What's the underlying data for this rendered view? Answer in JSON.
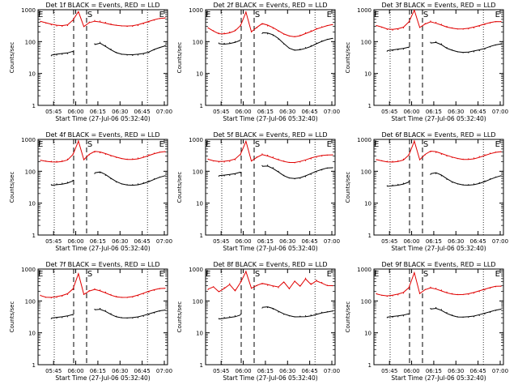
{
  "colors": {
    "events": "#000000",
    "lld": "#e00000",
    "axes": "#000000",
    "background": "#ffffff"
  },
  "chart_data": [
    {
      "type": "line",
      "title": "Det 1f BLACK = Events, RED = LLD",
      "xlabel": "Start Time (27-Jul-06 05:32:40)",
      "ylabel": "Counts/sec",
      "y_scale": "log",
      "ylim": [
        1,
        1000
      ],
      "x_ticks": [
        "05:45",
        "06:00",
        "06:15",
        "06:30",
        "06:45",
        "07:00"
      ],
      "y_ticks": [
        "1",
        "10",
        "100",
        "1000"
      ],
      "markers": [
        "E",
        "S",
        "E"
      ],
      "series": [
        {
          "key": "lld",
          "values": [
            430,
            380,
            335,
            310,
            300,
            320,
            460,
            860,
            300,
            410,
            460,
            440,
            400,
            360,
            330,
            310,
            300,
            300,
            320,
            360,
            410,
            470,
            530,
            560
          ]
        },
        {
          "key": "events",
          "values": [
            null,
            null,
            36,
            38,
            40,
            42,
            48,
            null,
            null,
            null,
            85,
            95,
            75,
            58,
            46,
            40,
            38,
            37,
            38,
            40,
            45,
            55,
            65,
            75
          ]
        }
      ]
    },
    {
      "type": "line",
      "title": "Det 2f BLACK = Events, RED = LLD",
      "xlabel": "Start Time (27-Jul-06 05:32:40)",
      "ylabel": "Counts/sec",
      "y_scale": "log",
      "ylim": [
        1,
        1000
      ],
      "x_ticks": [
        "05:45",
        "06:00",
        "06:15",
        "06:30",
        "06:45",
        "07:00"
      ],
      "y_ticks": [
        "1",
        "10",
        "100",
        "1000"
      ],
      "markers": [
        "E",
        "S",
        "E"
      ],
      "series": [
        {
          "key": "lld",
          "values": [
            270,
            220,
            185,
            185,
            200,
            230,
            330,
            850,
            200,
            270,
            350,
            310,
            260,
            210,
            170,
            150,
            145,
            160,
            190,
            220,
            260,
            290,
            320,
            340
          ]
        },
        {
          "key": "events",
          "values": [
            null,
            null,
            90,
            88,
            92,
            100,
            115,
            null,
            null,
            null,
            180,
            175,
            155,
            120,
            85,
            62,
            55,
            58,
            65,
            75,
            90,
            105,
            118,
            125
          ]
        }
      ]
    },
    {
      "type": "line",
      "title": "Det 3f BLACK = Events, RED = LLD",
      "xlabel": "Start Time (27-Jul-06 05:32:40)",
      "ylabel": "Counts/sec",
      "y_scale": "log",
      "ylim": [
        1,
        1000
      ],
      "x_ticks": [
        "05:45",
        "06:00",
        "06:15",
        "06:30",
        "06:45",
        "07:00"
      ],
      "y_ticks": [
        "1",
        "10",
        "100",
        "1000"
      ],
      "markers": [
        "E",
        "S",
        "E"
      ],
      "series": [
        {
          "key": "lld",
          "values": [
            320,
            280,
            240,
            230,
            240,
            270,
            400,
            950,
            280,
            370,
            440,
            400,
            350,
            300,
            270,
            250,
            245,
            250,
            270,
            300,
            340,
            380,
            420,
            430
          ]
        },
        {
          "key": "events",
          "values": [
            null,
            null,
            50,
            52,
            55,
            58,
            65,
            null,
            null,
            null,
            95,
            100,
            85,
            65,
            55,
            48,
            45,
            45,
            48,
            52,
            58,
            68,
            78,
            85
          ]
        }
      ]
    },
    {
      "type": "line",
      "title": "Det 4f BLACK = Events, RED = LLD",
      "xlabel": "Start Time (27-Jul-06 05:32:40)",
      "ylabel": "Counts/sec",
      "y_scale": "log",
      "ylim": [
        1,
        1000
      ],
      "x_ticks": [
        "05:45",
        "06:00",
        "06:15",
        "06:30",
        "06:45",
        "07:00"
      ],
      "y_ticks": [
        "1",
        "10",
        "100",
        "1000"
      ],
      "markers": [
        "E",
        "S",
        "E"
      ],
      "series": [
        {
          "key": "lld",
          "values": [
            220,
            210,
            205,
            205,
            215,
            240,
            350,
            900,
            230,
            330,
            400,
            380,
            340,
            300,
            270,
            250,
            240,
            245,
            260,
            290,
            330,
            370,
            400,
            410
          ]
        },
        {
          "key": "events",
          "values": [
            null,
            null,
            38,
            40,
            42,
            45,
            52,
            null,
            null,
            null,
            85,
            90,
            75,
            58,
            46,
            40,
            38,
            38,
            40,
            44,
            50,
            58,
            66,
            72
          ]
        }
      ]
    },
    {
      "type": "line",
      "title": "Det 5f BLACK = Events, RED = LLD",
      "xlabel": "Start Time (27-Jul-06 05:32:40)",
      "ylabel": "Counts/sec",
      "y_scale": "log",
      "ylim": [
        1,
        1000
      ],
      "x_ticks": [
        "05:45",
        "06:00",
        "06:15",
        "06:30",
        "06:45",
        "07:00"
      ],
      "y_ticks": [
        "1",
        "10",
        "100",
        "1000"
      ],
      "markers": [
        "E",
        "S",
        "E"
      ],
      "series": [
        {
          "key": "lld",
          "values": [
            240,
            210,
            195,
            195,
            205,
            230,
            330,
            850,
            210,
            280,
            350,
            320,
            280,
            240,
            210,
            190,
            185,
            195,
            215,
            245,
            275,
            300,
            320,
            330
          ]
        },
        {
          "key": "events",
          "values": [
            null,
            null,
            70,
            72,
            75,
            80,
            90,
            null,
            null,
            null,
            150,
            155,
            130,
            100,
            75,
            62,
            58,
            60,
            68,
            80,
            95,
            110,
            125,
            130
          ]
        }
      ]
    },
    {
      "type": "line",
      "title": "Det 6f BLACK = Events, RED = LLD",
      "xlabel": "Start Time (27-Jul-06 05:32:40)",
      "ylabel": "Counts/sec",
      "y_scale": "log",
      "ylim": [
        1,
        1000
      ],
      "x_ticks": [
        "05:45",
        "06:00",
        "06:15",
        "06:30",
        "06:45",
        "07:00"
      ],
      "y_ticks": [
        "1",
        "10",
        "100",
        "1000"
      ],
      "markers": [
        "E",
        "S",
        "E"
      ],
      "series": [
        {
          "key": "lld",
          "values": [
            230,
            215,
            205,
            205,
            215,
            240,
            340,
            900,
            230,
            330,
            410,
            390,
            340,
            300,
            270,
            250,
            240,
            245,
            260,
            290,
            330,
            370,
            400,
            410
          ]
        },
        {
          "key": "events",
          "values": [
            null,
            null,
            35,
            37,
            39,
            42,
            48,
            null,
            null,
            null,
            80,
            85,
            72,
            56,
            45,
            40,
            38,
            38,
            40,
            44,
            50,
            58,
            66,
            72
          ]
        }
      ]
    },
    {
      "type": "line",
      "title": "Det 7f BLACK = Events, RED = LLD",
      "xlabel": "Start Time (27-Jul-06 05:32:40)",
      "ylabel": "Counts/sec",
      "y_scale": "log",
      "ylim": [
        1,
        1000
      ],
      "x_ticks": [
        "05:45",
        "06:00",
        "06:15",
        "06:30",
        "06:45",
        "07:00"
      ],
      "y_ticks": [
        "1",
        "10",
        "100",
        "1000"
      ],
      "markers": [
        "E",
        "S",
        "E"
      ],
      "series": [
        {
          "key": "lld",
          "values": [
            150,
            130,
            125,
            130,
            140,
            160,
            230,
            700,
            160,
            210,
            240,
            220,
            190,
            160,
            140,
            130,
            128,
            132,
            145,
            165,
            190,
            215,
            240,
            250
          ]
        },
        {
          "key": "events",
          "values": [
            null,
            null,
            28,
            29,
            30,
            32,
            36,
            null,
            null,
            null,
            55,
            58,
            50,
            40,
            33,
            30,
            29,
            29,
            30,
            33,
            37,
            42,
            48,
            52
          ]
        }
      ]
    },
    {
      "type": "line",
      "title": "Det 8f BLACK = Events, RED = LLD",
      "xlabel": "Start Time (27-Jul-06 05:32:40)",
      "ylabel": "Counts/sec",
      "y_scale": "log",
      "ylim": [
        1,
        1000
      ],
      "x_ticks": [
        "05:45",
        "06:00",
        "06:15",
        "06:30",
        "06:45",
        "07:00"
      ],
      "y_ticks": [
        "1",
        "10",
        "100",
        "1000"
      ],
      "markers": [
        "E",
        "S",
        "E"
      ],
      "series": [
        {
          "key": "lld",
          "values": [
            230,
            280,
            200,
            260,
            350,
            220,
            400,
            850,
            250,
            300,
            340,
            310,
            280,
            260,
            380,
            240,
            420,
            300,
            520,
            350,
            450,
            380,
            310,
            300
          ]
        },
        {
          "key": "events",
          "values": [
            null,
            null,
            28,
            30,
            32,
            34,
            38,
            null,
            null,
            null,
            60,
            62,
            55,
            45,
            38,
            34,
            32,
            33,
            34,
            36,
            40,
            44,
            46,
            48
          ]
        }
      ]
    },
    {
      "type": "line",
      "title": "Det 9f BLACK = Events, RED = LLD",
      "xlabel": "Start Time (27-Jul-06 05:32:40)",
      "ylabel": "Counts/sec",
      "y_scale": "log",
      "ylim": [
        1,
        1000
      ],
      "x_ticks": [
        "05:45",
        "06:00",
        "06:15",
        "06:30",
        "06:45",
        "07:00"
      ],
      "y_ticks": [
        "1",
        "10",
        "100",
        "1000"
      ],
      "markers": [
        "E",
        "S",
        "E"
      ],
      "series": [
        {
          "key": "lld",
          "values": [
            170,
            150,
            140,
            145,
            155,
            175,
            250,
            750,
            170,
            230,
            270,
            250,
            220,
            190,
            170,
            160,
            158,
            162,
            175,
            195,
            220,
            250,
            280,
            290
          ]
        },
        {
          "key": "events",
          "values": [
            null,
            null,
            30,
            31,
            32,
            34,
            38,
            null,
            null,
            null,
            58,
            62,
            54,
            43,
            36,
            32,
            31,
            31,
            32,
            35,
            39,
            44,
            50,
            55
          ]
        }
      ]
    }
  ]
}
